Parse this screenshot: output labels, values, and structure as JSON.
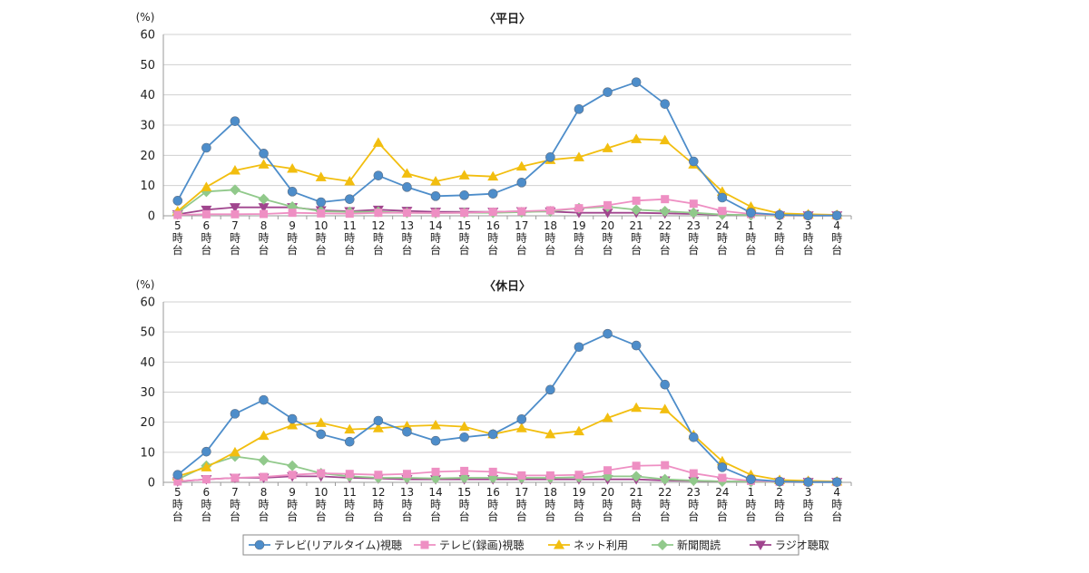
{
  "colors": {
    "tv_realtime": "#4d8dca",
    "tv_recorded": "#ee8fc3",
    "net": "#f2be0f",
    "newspaper": "#91c98b",
    "radio": "#a0458e",
    "grid": "#d0d0d0",
    "axis": "#999999"
  },
  "legend": {
    "items": [
      {
        "key": "tv_realtime",
        "label": "テレビ(リアルタイム)視聴",
        "marker": "circle"
      },
      {
        "key": "tv_recorded",
        "label": "テレビ(録画)視聴",
        "marker": "square"
      },
      {
        "key": "net",
        "label": "ネット利用",
        "marker": "triangle-up"
      },
      {
        "key": "newspaper",
        "label": "新聞閲読",
        "marker": "diamond"
      },
      {
        "key": "radio",
        "label": "ラジオ聴取",
        "marker": "triangle-down"
      }
    ]
  },
  "chart_data": [
    {
      "type": "line",
      "title": "〈平日〉",
      "ylabel": "(%)",
      "ylim": [
        0,
        60
      ],
      "yticks": [
        0,
        10,
        20,
        30,
        40,
        50,
        60
      ],
      "grid": true,
      "categories": [
        "5時台",
        "6時台",
        "7時台",
        "8時台",
        "9時台",
        "10時台",
        "11時台",
        "12時台",
        "13時台",
        "14時台",
        "15時台",
        "16時台",
        "17時台",
        "18時台",
        "19時台",
        "20時台",
        "21時台",
        "22時台",
        "23時台",
        "24時台",
        "1時台",
        "2時台",
        "3時台",
        "4時台"
      ],
      "series": [
        {
          "key": "tv_realtime",
          "name": "テレビ(リアルタイム)視聴",
          "values": [
            5,
            22.5,
            31.3,
            20.6,
            8,
            4.5,
            5.5,
            13.3,
            9.5,
            6.5,
            6.8,
            7.3,
            11,
            19.4,
            35.3,
            40.9,
            44.2,
            37,
            18,
            6,
            1,
            0.3,
            0.1,
            0.1
          ]
        },
        {
          "key": "tv_recorded",
          "name": "テレビ(録画)視聴",
          "values": [
            0.3,
            0.5,
            0.5,
            0.6,
            1,
            0.8,
            0.7,
            1,
            1,
            0.9,
            1,
            1.3,
            1.5,
            1.8,
            2.5,
            3.5,
            5,
            5.5,
            4,
            1.6,
            0.6,
            0.2,
            0.1,
            0.1
          ]
        },
        {
          "key": "net",
          "name": "ネット利用",
          "values": [
            1.5,
            9.5,
            15,
            17,
            15.6,
            12.8,
            11.4,
            24.2,
            14,
            11.4,
            13.4,
            13,
            16.3,
            18.5,
            19.4,
            22.4,
            25.4,
            25,
            17,
            8,
            3,
            0.8,
            0.5,
            0.3
          ]
        },
        {
          "key": "newspaper",
          "name": "新聞閲読",
          "values": [
            1,
            8,
            8.6,
            5.5,
            3,
            1.5,
            1.3,
            1.3,
            1,
            0.9,
            1,
            1,
            1.2,
            1.5,
            2.5,
            3,
            2,
            1.5,
            1,
            0.4,
            0.2,
            0.1,
            0.1,
            0.1
          ]
        },
        {
          "key": "radio",
          "name": "ラジオ聴取",
          "values": [
            0.5,
            2,
            2.8,
            2.8,
            2.8,
            1.8,
            1.5,
            2,
            1.6,
            1.3,
            1.3,
            1.3,
            1.5,
            1.4,
            1,
            1,
            1,
            0.8,
            0.6,
            0.3,
            0.2,
            0.1,
            0.1,
            0.1
          ]
        }
      ]
    },
    {
      "type": "line",
      "title": "〈休日〉",
      "ylabel": "(%)",
      "ylim": [
        0,
        60
      ],
      "yticks": [
        0,
        10,
        20,
        30,
        40,
        50,
        60
      ],
      "grid": true,
      "categories": [
        "5時台",
        "6時台",
        "7時台",
        "8時台",
        "9時台",
        "10時台",
        "11時台",
        "12時台",
        "13時台",
        "14時台",
        "15時台",
        "16時台",
        "17時台",
        "18時台",
        "19時台",
        "20時台",
        "21時台",
        "22時台",
        "23時台",
        "24時台",
        "1時台",
        "2時台",
        "3時台",
        "4時台"
      ],
      "series": [
        {
          "key": "tv_realtime",
          "name": "テレビ(リアルタイム)視聴",
          "values": [
            2.5,
            10.2,
            22.8,
            27.4,
            21.1,
            16,
            13.5,
            20.5,
            16.8,
            13.8,
            15,
            16,
            21,
            30.8,
            45,
            49.4,
            45.5,
            32.5,
            15,
            5,
            1,
            0.3,
            0.1,
            0.1
          ]
        },
        {
          "key": "tv_recorded",
          "name": "テレビ(録画)視聴",
          "values": [
            0.3,
            1,
            1.5,
            1.8,
            2.5,
            3,
            2.8,
            2.5,
            2.8,
            3.5,
            3.8,
            3.5,
            2.3,
            2.3,
            2.5,
            4,
            5.5,
            5.7,
            3,
            1.5,
            0.5,
            0.2,
            0.1,
            0.1
          ]
        },
        {
          "key": "net",
          "name": "ネット利用",
          "values": [
            2,
            5,
            10,
            15.5,
            19,
            19.8,
            17.6,
            18,
            18.7,
            19,
            18.5,
            16,
            18,
            16,
            17,
            21.4,
            24.8,
            24.3,
            15.7,
            7,
            2.5,
            0.8,
            0.5,
            0.3
          ]
        },
        {
          "key": "newspaper",
          "name": "新聞閲読",
          "values": [
            1,
            5.5,
            8.6,
            7.3,
            5.5,
            3,
            2,
            1.5,
            1.5,
            1.3,
            1.5,
            1.5,
            1.5,
            1.5,
            1.7,
            2,
            2,
            1,
            0.6,
            0.3,
            0.2,
            0.1,
            0.1,
            0.1
          ]
        },
        {
          "key": "radio",
          "name": "ラジオ聴取",
          "values": [
            0.3,
            1,
            1.5,
            1.5,
            2,
            2,
            1.5,
            1.3,
            1,
            1,
            1,
            1,
            1,
            1,
            1,
            1,
            1,
            0.6,
            0.5,
            0.3,
            0.2,
            0.1,
            0.1,
            0.1
          ]
        }
      ]
    }
  ]
}
